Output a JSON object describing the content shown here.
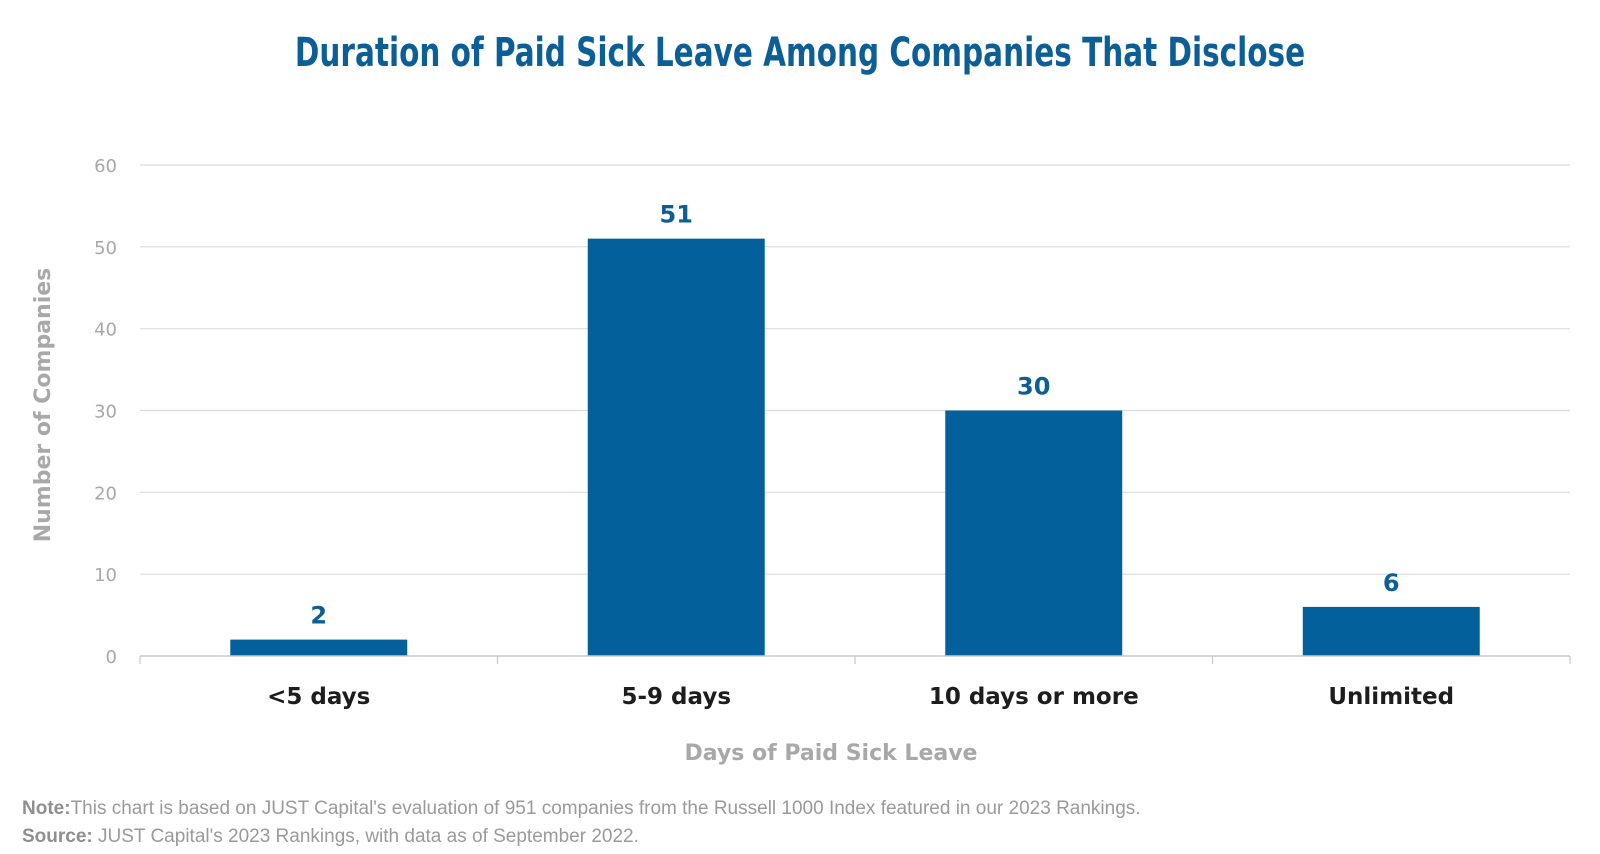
{
  "chart_data": {
    "type": "bar",
    "title": "Duration of Paid Sick Leave Among Companies That Disclose",
    "categories": [
      "<5 days",
      "5-9 days",
      "10 days or more",
      "Unlimited"
    ],
    "values": [
      2,
      51,
      30,
      6
    ],
    "data_labels": [
      "2",
      "51",
      "30",
      "6"
    ],
    "xlabel": "Days of Paid Sick Leave",
    "ylabel": "Number of Companies",
    "ylim": [
      0,
      60
    ],
    "yticks": [
      0,
      10,
      20,
      30,
      40,
      50,
      60
    ],
    "ytick_labels": [
      "0",
      "10",
      "20",
      "30",
      "40",
      "50",
      "60"
    ],
    "grid": true,
    "bar_color": "#04609a"
  },
  "notes": {
    "note_label": "Note:",
    "note_text": "This chart is based on JUST Capital's evaluation of 951 companies from the Russell 1000 Index featured in our 2023 Rankings.",
    "source_label": "Source:",
    "source_text": " JUST Capital's 2023 Rankings, with data as of September 2022."
  }
}
